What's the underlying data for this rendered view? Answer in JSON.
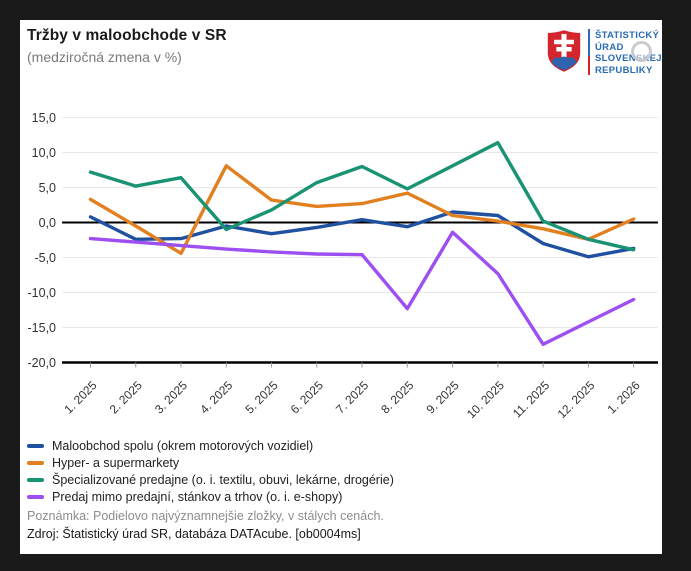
{
  "header": {
    "title": "Tržby v maloobchode v SR",
    "subtitle": "(medziročná zmena v %)"
  },
  "logo": {
    "org_lines": [
      "ŠTATISTICKÝ",
      "ÚRAD",
      "SLOVENSKEJ",
      "REPUBLIKY"
    ],
    "text_color": "#2a6cb4",
    "shield_red": "#d3252b",
    "shield_blue": "#2f63ad"
  },
  "chart_data": {
    "type": "line",
    "title": "Tržby v maloobchode v SR",
    "subtitle": "(medziročná zmena v %)",
    "categories": [
      "1. 2025",
      "2. 2025",
      "3. 2025",
      "4. 2025",
      "5. 2025",
      "6. 2025",
      "7. 2025",
      "8. 2025",
      "9. 2025",
      "10. 2025",
      "11. 2025",
      "12. 2025",
      "1. 2026"
    ],
    "series": [
      {
        "name": "Maloobchod spolu (okrem motorových vozidiel)",
        "color": "#1f51a0",
        "values": [
          0.8,
          -2.4,
          -2.3,
          -0.5,
          -1.6,
          -0.7,
          0.4,
          -0.6,
          1.5,
          1.0,
          -3.0,
          -4.9,
          -3.7
        ]
      },
      {
        "name": "Hyper- a supermarkety",
        "color": "#e2801f",
        "values": [
          3.3,
          -0.5,
          -4.4,
          8.1,
          3.2,
          2.3,
          2.7,
          4.2,
          1.0,
          0.2,
          -0.9,
          -2.4,
          0.5
        ]
      },
      {
        "name": "Špecializované predajne (o. i. textilu, obuvi, lekárne, drogérie)",
        "color": "#1a9274",
        "values": [
          7.2,
          5.2,
          6.4,
          -1.0,
          1.8,
          5.7,
          8.0,
          4.8,
          8.1,
          11.4,
          0.2,
          -2.4,
          -3.9
        ]
      },
      {
        "name": "Predaj mimo predajní, stánkov a trhov (o. i. e-shopy)",
        "color": "#9d4ff2",
        "values": [
          -2.3,
          -2.8,
          -3.3,
          -3.8,
          -4.2,
          -4.5,
          -4.6,
          -12.3,
          -1.4,
          -7.3,
          -17.4,
          -14.2,
          -11.0
        ]
      }
    ],
    "ylim": [
      -20,
      15
    ],
    "yticks": [
      15,
      10,
      5,
      0,
      -5,
      -10,
      -15,
      -20
    ],
    "ytick_labels": [
      "15,0",
      "10,0",
      "5,0",
      "0,0",
      "-5,0",
      "-10,0",
      "-15,0",
      "-20,0"
    ],
    "grid": true,
    "zero_line": true,
    "legend_position": "bottom-left",
    "grid_color": "#e8e8e8",
    "axis_color": "#000000"
  },
  "footer": {
    "note": "Poznámka: Podielovo najvýznamnejšie zložky, v stálych cenách.",
    "source": "Zdroj: Štatistický úrad SR, databáza DATAcube. [ob0004ms]"
  }
}
